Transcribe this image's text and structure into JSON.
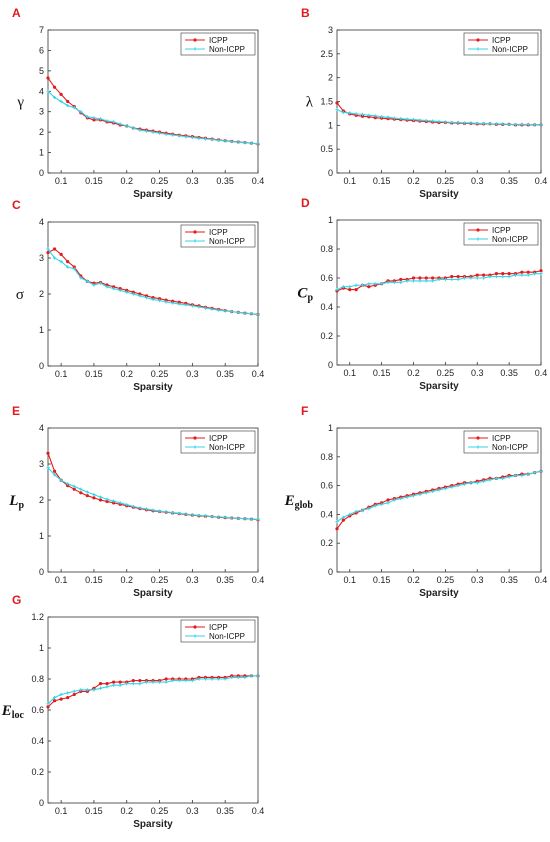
{
  "colors": {
    "icpp": "#e41a1c",
    "non_icpp": "#33d6e6",
    "panel_label": "#e0191e"
  },
  "legend": {
    "icpp": "ICPP",
    "non_icpp": "Non-ICPP"
  },
  "chart_data": [
    {
      "panel": "A",
      "type": "line",
      "ylabel": "γ",
      "xlabel": "Sparsity",
      "xlim": [
        0.08,
        0.4
      ],
      "ylim": [
        0,
        7
      ],
      "xticks": [
        "0.1",
        "0.15",
        "0.2",
        "0.25",
        "0.3",
        "0.35",
        "0.4"
      ],
      "yticks": [
        "0",
        "1",
        "2",
        "3",
        "4",
        "5",
        "6",
        "7"
      ],
      "x": [
        0.08,
        0.09,
        0.1,
        0.11,
        0.12,
        0.13,
        0.14,
        0.15,
        0.16,
        0.17,
        0.18,
        0.19,
        0.2,
        0.21,
        0.22,
        0.23,
        0.24,
        0.25,
        0.26,
        0.27,
        0.28,
        0.29,
        0.3,
        0.31,
        0.32,
        0.33,
        0.34,
        0.35,
        0.36,
        0.37,
        0.38,
        0.39,
        0.4
      ],
      "series": [
        {
          "name": "ICPP",
          "values": [
            4.65,
            4.2,
            3.85,
            3.5,
            3.25,
            2.95,
            2.7,
            2.6,
            2.6,
            2.5,
            2.45,
            2.35,
            2.3,
            2.2,
            2.15,
            2.1,
            2.05,
            2.0,
            1.95,
            1.9,
            1.85,
            1.82,
            1.78,
            1.74,
            1.7,
            1.66,
            1.62,
            1.58,
            1.55,
            1.52,
            1.49,
            1.46,
            1.42
          ]
        },
        {
          "name": "Non-ICPP",
          "values": [
            4.0,
            3.7,
            3.5,
            3.3,
            3.2,
            3.0,
            2.75,
            2.7,
            2.65,
            2.55,
            2.5,
            2.4,
            2.3,
            2.2,
            2.1,
            2.05,
            2.0,
            1.95,
            1.9,
            1.86,
            1.82,
            1.78,
            1.74,
            1.7,
            1.67,
            1.64,
            1.6,
            1.57,
            1.54,
            1.51,
            1.48,
            1.46,
            1.43
          ]
        }
      ]
    },
    {
      "panel": "B",
      "type": "line",
      "ylabel": "λ",
      "xlabel": "Sparsity",
      "xlim": [
        0.08,
        0.4
      ],
      "ylim": [
        0,
        3
      ],
      "xticks": [
        "0.1",
        "0.15",
        "0.2",
        "0.25",
        "0.3",
        "0.35",
        "0.4"
      ],
      "yticks": [
        "0",
        "0.5",
        "1",
        "1.5",
        "2",
        "2.5",
        "3"
      ],
      "x": [
        0.08,
        0.09,
        0.1,
        0.11,
        0.12,
        0.13,
        0.14,
        0.15,
        0.16,
        0.17,
        0.18,
        0.19,
        0.2,
        0.21,
        0.22,
        0.23,
        0.24,
        0.25,
        0.26,
        0.27,
        0.28,
        0.29,
        0.3,
        0.31,
        0.32,
        0.33,
        0.34,
        0.35,
        0.36,
        0.37,
        0.38,
        0.39,
        0.4
      ],
      "series": [
        {
          "name": "ICPP",
          "values": [
            1.47,
            1.3,
            1.24,
            1.21,
            1.19,
            1.18,
            1.16,
            1.15,
            1.14,
            1.13,
            1.12,
            1.11,
            1.1,
            1.09,
            1.08,
            1.07,
            1.06,
            1.06,
            1.05,
            1.05,
            1.04,
            1.04,
            1.03,
            1.03,
            1.03,
            1.02,
            1.02,
            1.02,
            1.01,
            1.01,
            1.01,
            1.01,
            1.01
          ]
        },
        {
          "name": "Non-ICPP",
          "values": [
            1.33,
            1.27,
            1.26,
            1.24,
            1.23,
            1.21,
            1.2,
            1.18,
            1.17,
            1.15,
            1.14,
            1.13,
            1.12,
            1.11,
            1.1,
            1.09,
            1.08,
            1.07,
            1.06,
            1.06,
            1.05,
            1.05,
            1.04,
            1.04,
            1.03,
            1.03,
            1.03,
            1.02,
            1.02,
            1.02,
            1.02,
            1.01,
            1.01
          ]
        }
      ]
    },
    {
      "panel": "C",
      "type": "line",
      "ylabel": "σ",
      "xlabel": "Sparsity",
      "xlim": [
        0.08,
        0.4
      ],
      "ylim": [
        0,
        4
      ],
      "xticks": [
        "0.1",
        "0.15",
        "0.2",
        "0.25",
        "0.3",
        "0.35",
        "0.4"
      ],
      "yticks": [
        "0",
        "1",
        "2",
        "3",
        "4"
      ],
      "x": [
        0.08,
        0.09,
        0.1,
        0.11,
        0.12,
        0.13,
        0.14,
        0.15,
        0.16,
        0.17,
        0.18,
        0.19,
        0.2,
        0.21,
        0.22,
        0.23,
        0.24,
        0.25,
        0.26,
        0.27,
        0.28,
        0.29,
        0.3,
        0.31,
        0.32,
        0.33,
        0.34,
        0.35,
        0.36,
        0.37,
        0.38,
        0.39,
        0.4
      ],
      "series": [
        {
          "name": "ICPP",
          "values": [
            3.15,
            3.25,
            3.1,
            2.9,
            2.75,
            2.5,
            2.35,
            2.3,
            2.32,
            2.25,
            2.2,
            2.15,
            2.1,
            2.05,
            2.0,
            1.95,
            1.9,
            1.87,
            1.83,
            1.8,
            1.77,
            1.74,
            1.7,
            1.67,
            1.63,
            1.6,
            1.57,
            1.54,
            1.51,
            1.49,
            1.47,
            1.45,
            1.43
          ]
        },
        {
          "name": "Non-ICPP",
          "values": [
            3.25,
            3.0,
            2.9,
            2.75,
            2.7,
            2.45,
            2.35,
            2.25,
            2.3,
            2.2,
            2.15,
            2.1,
            2.05,
            2.0,
            1.95,
            1.9,
            1.85,
            1.82,
            1.78,
            1.75,
            1.72,
            1.7,
            1.67,
            1.64,
            1.61,
            1.58,
            1.55,
            1.53,
            1.51,
            1.49,
            1.47,
            1.45,
            1.43
          ]
        }
      ]
    },
    {
      "panel": "D",
      "type": "line",
      "ylabel": "Cp",
      "xlabel": "Sparsity",
      "xlim": [
        0.08,
        0.4
      ],
      "ylim": [
        0,
        1
      ],
      "xticks": [
        "0.1",
        "0.15",
        "0.2",
        "0.25",
        "0.3",
        "0.35",
        "0.4"
      ],
      "yticks": [
        "0",
        "0.2",
        "0.4",
        "0.6",
        "0.8",
        "1"
      ],
      "x": [
        0.08,
        0.09,
        0.1,
        0.11,
        0.12,
        0.13,
        0.14,
        0.15,
        0.16,
        0.17,
        0.18,
        0.19,
        0.2,
        0.21,
        0.22,
        0.23,
        0.24,
        0.25,
        0.26,
        0.27,
        0.28,
        0.29,
        0.3,
        0.31,
        0.32,
        0.33,
        0.34,
        0.35,
        0.36,
        0.37,
        0.38,
        0.39,
        0.4
      ],
      "series": [
        {
          "name": "ICPP",
          "values": [
            0.51,
            0.53,
            0.52,
            0.52,
            0.55,
            0.54,
            0.55,
            0.56,
            0.58,
            0.58,
            0.59,
            0.59,
            0.6,
            0.6,
            0.6,
            0.6,
            0.6,
            0.6,
            0.61,
            0.61,
            0.61,
            0.61,
            0.62,
            0.62,
            0.62,
            0.63,
            0.63,
            0.63,
            0.63,
            0.64,
            0.64,
            0.64,
            0.65
          ]
        },
        {
          "name": "Non-ICPP",
          "values": [
            0.52,
            0.54,
            0.54,
            0.55,
            0.55,
            0.56,
            0.56,
            0.56,
            0.57,
            0.57,
            0.57,
            0.58,
            0.58,
            0.58,
            0.58,
            0.58,
            0.59,
            0.59,
            0.59,
            0.59,
            0.6,
            0.6,
            0.6,
            0.6,
            0.61,
            0.61,
            0.61,
            0.61,
            0.62,
            0.62,
            0.62,
            0.63,
            0.63
          ]
        }
      ]
    },
    {
      "panel": "E",
      "type": "line",
      "ylabel": "Lp",
      "xlabel": "Sparsity",
      "xlim": [
        0.08,
        0.4
      ],
      "ylim": [
        0,
        4
      ],
      "xticks": [
        "0.1",
        "0.15",
        "0.2",
        "0.25",
        "0.3",
        "0.35",
        "0.4"
      ],
      "yticks": [
        "0",
        "1",
        "2",
        "3",
        "4"
      ],
      "x": [
        0.08,
        0.09,
        0.1,
        0.11,
        0.12,
        0.13,
        0.14,
        0.15,
        0.16,
        0.17,
        0.18,
        0.19,
        0.2,
        0.21,
        0.22,
        0.23,
        0.24,
        0.25,
        0.26,
        0.27,
        0.28,
        0.29,
        0.3,
        0.31,
        0.32,
        0.33,
        0.34,
        0.35,
        0.36,
        0.37,
        0.38,
        0.39,
        0.4
      ],
      "series": [
        {
          "name": "ICPP",
          "values": [
            3.3,
            2.8,
            2.55,
            2.4,
            2.3,
            2.2,
            2.12,
            2.06,
            2.0,
            1.96,
            1.92,
            1.88,
            1.84,
            1.8,
            1.76,
            1.73,
            1.7,
            1.68,
            1.66,
            1.64,
            1.62,
            1.6,
            1.58,
            1.56,
            1.55,
            1.54,
            1.52,
            1.51,
            1.5,
            1.49,
            1.48,
            1.47,
            1.45
          ]
        },
        {
          "name": "Non-ICPP",
          "values": [
            2.9,
            2.7,
            2.55,
            2.45,
            2.38,
            2.3,
            2.22,
            2.15,
            2.08,
            2.02,
            1.97,
            1.92,
            1.87,
            1.82,
            1.78,
            1.75,
            1.72,
            1.69,
            1.67,
            1.65,
            1.63,
            1.61,
            1.59,
            1.57,
            1.56,
            1.54,
            1.53,
            1.52,
            1.5,
            1.49,
            1.48,
            1.47,
            1.46
          ]
        }
      ]
    },
    {
      "panel": "F",
      "type": "line",
      "ylabel": "Eglob",
      "xlabel": "Sparsity",
      "xlim": [
        0.08,
        0.4
      ],
      "ylim": [
        0,
        1
      ],
      "xticks": [
        "0.1",
        "0.15",
        "0.2",
        "0.25",
        "0.3",
        "0.35",
        "0.4"
      ],
      "yticks": [
        "0",
        "0.2",
        "0.4",
        "0.6",
        "0.8",
        "1"
      ],
      "x": [
        0.08,
        0.09,
        0.1,
        0.11,
        0.12,
        0.13,
        0.14,
        0.15,
        0.16,
        0.17,
        0.18,
        0.19,
        0.2,
        0.21,
        0.22,
        0.23,
        0.24,
        0.25,
        0.26,
        0.27,
        0.28,
        0.29,
        0.3,
        0.31,
        0.32,
        0.33,
        0.34,
        0.35,
        0.36,
        0.37,
        0.38,
        0.39,
        0.4
      ],
      "series": [
        {
          "name": "ICPP",
          "values": [
            0.3,
            0.36,
            0.39,
            0.41,
            0.43,
            0.45,
            0.47,
            0.48,
            0.5,
            0.51,
            0.52,
            0.53,
            0.54,
            0.55,
            0.56,
            0.57,
            0.58,
            0.59,
            0.6,
            0.61,
            0.62,
            0.62,
            0.63,
            0.64,
            0.65,
            0.65,
            0.66,
            0.67,
            0.67,
            0.68,
            0.68,
            0.69,
            0.7
          ]
        },
        {
          "name": "Non-ICPP",
          "values": [
            0.35,
            0.38,
            0.4,
            0.42,
            0.43,
            0.44,
            0.46,
            0.47,
            0.48,
            0.5,
            0.51,
            0.52,
            0.53,
            0.54,
            0.55,
            0.56,
            0.57,
            0.58,
            0.59,
            0.6,
            0.61,
            0.62,
            0.62,
            0.63,
            0.64,
            0.65,
            0.65,
            0.66,
            0.67,
            0.67,
            0.68,
            0.69,
            0.7
          ]
        }
      ]
    },
    {
      "panel": "G",
      "type": "line",
      "ylabel": "Eloc",
      "xlabel": "Sparsity",
      "xlim": [
        0.08,
        0.4
      ],
      "ylim": [
        0,
        1.2
      ],
      "xticks": [
        "0.1",
        "0.15",
        "0.2",
        "0.25",
        "0.3",
        "0.35",
        "0.4"
      ],
      "yticks": [
        "0",
        "0.2",
        "0.4",
        "0.6",
        "0.8",
        "1",
        "1.2"
      ],
      "x": [
        0.08,
        0.09,
        0.1,
        0.11,
        0.12,
        0.13,
        0.14,
        0.15,
        0.16,
        0.17,
        0.18,
        0.19,
        0.2,
        0.21,
        0.22,
        0.23,
        0.24,
        0.25,
        0.26,
        0.27,
        0.28,
        0.29,
        0.3,
        0.31,
        0.32,
        0.33,
        0.34,
        0.35,
        0.36,
        0.37,
        0.38,
        0.39,
        0.4
      ],
      "series": [
        {
          "name": "ICPP",
          "values": [
            0.62,
            0.66,
            0.67,
            0.68,
            0.7,
            0.72,
            0.72,
            0.74,
            0.77,
            0.77,
            0.78,
            0.78,
            0.78,
            0.79,
            0.79,
            0.79,
            0.79,
            0.79,
            0.8,
            0.8,
            0.8,
            0.8,
            0.8,
            0.81,
            0.81,
            0.81,
            0.81,
            0.81,
            0.82,
            0.82,
            0.82,
            0.82,
            0.82
          ]
        },
        {
          "name": "Non-ICPP",
          "values": [
            0.64,
            0.68,
            0.7,
            0.71,
            0.72,
            0.73,
            0.73,
            0.73,
            0.74,
            0.75,
            0.76,
            0.76,
            0.77,
            0.77,
            0.77,
            0.78,
            0.78,
            0.78,
            0.78,
            0.79,
            0.79,
            0.79,
            0.79,
            0.8,
            0.8,
            0.8,
            0.8,
            0.8,
            0.81,
            0.81,
            0.81,
            0.82,
            0.82
          ]
        }
      ]
    }
  ]
}
